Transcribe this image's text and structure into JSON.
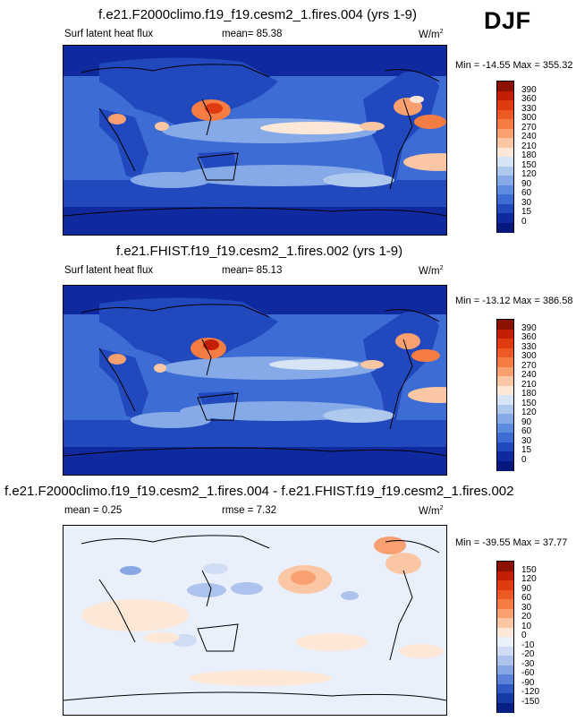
{
  "season_label": "DJF",
  "panels": [
    {
      "title": "f.e21.F2000climo.f19_f19.cesm2_1.fires.004 (yrs 1-9)",
      "variable": "Surf latent heat flux",
      "stat": "mean=  85.38",
      "units": "W/m",
      "units_sup": "2",
      "minmax": "Min = -14.55 Max = 355.32",
      "colorbar_levels": [
        "390",
        "360",
        "330",
        "300",
        "270",
        "240",
        "210",
        "180",
        "150",
        "120",
        "90",
        "60",
        "30",
        "15",
        "0"
      ],
      "colorbar_colors": [
        "#8b1200",
        "#c21f05",
        "#e03a10",
        "#ee5a24",
        "#f57c42",
        "#f8a070",
        "#fbc6a4",
        "#fde8d8",
        "#d6e4f5",
        "#afc8ee",
        "#86aae8",
        "#5d8be0",
        "#3d6cd4",
        "#2148bd",
        "#0f2a9e",
        "#06177d"
      ]
    },
    {
      "title": "f.e21.FHIST.f19_f19.cesm2_1.fires.002 (yrs 1-9)",
      "variable": "Surf latent heat flux",
      "stat": "mean=  85.13",
      "units": "W/m",
      "units_sup": "2",
      "minmax": "Min = -13.12 Max = 386.58",
      "colorbar_levels": [
        "390",
        "360",
        "330",
        "300",
        "270",
        "240",
        "210",
        "180",
        "150",
        "120",
        "90",
        "60",
        "30",
        "15",
        "0"
      ],
      "colorbar_colors": [
        "#8b1200",
        "#c21f05",
        "#e03a10",
        "#ee5a24",
        "#f57c42",
        "#f8a070",
        "#fbc6a4",
        "#fde8d8",
        "#d6e4f5",
        "#afc8ee",
        "#86aae8",
        "#5d8be0",
        "#3d6cd4",
        "#2148bd",
        "#0f2a9e",
        "#06177d"
      ]
    },
    {
      "title": "f.e21.F2000climo.f19_f19.cesm2_1.fires.004 - f.e21.FHIST.f19_f19.cesm2_1.fires.002",
      "variable": "mean =   0.25",
      "stat": "rmse =   7.32",
      "units": "W/m",
      "units_sup": "2",
      "minmax": "Min = -39.55 Max =  37.77",
      "colorbar_levels": [
        "150",
        "120",
        "90",
        "60",
        "30",
        "20",
        "10",
        "0",
        "-10",
        "-20",
        "-30",
        "-60",
        "-90",
        "-120",
        "-150"
      ],
      "colorbar_colors": [
        "#8b1200",
        "#c21f05",
        "#e03a10",
        "#ee5a24",
        "#f57c42",
        "#f8a070",
        "#fbc6a4",
        "#fde8d8",
        "#eaf0fb",
        "#cfdcf4",
        "#adc3ed",
        "#86a6e4",
        "#5b82d8",
        "#3059c4",
        "#163aa6",
        "#071f85"
      ]
    }
  ]
}
